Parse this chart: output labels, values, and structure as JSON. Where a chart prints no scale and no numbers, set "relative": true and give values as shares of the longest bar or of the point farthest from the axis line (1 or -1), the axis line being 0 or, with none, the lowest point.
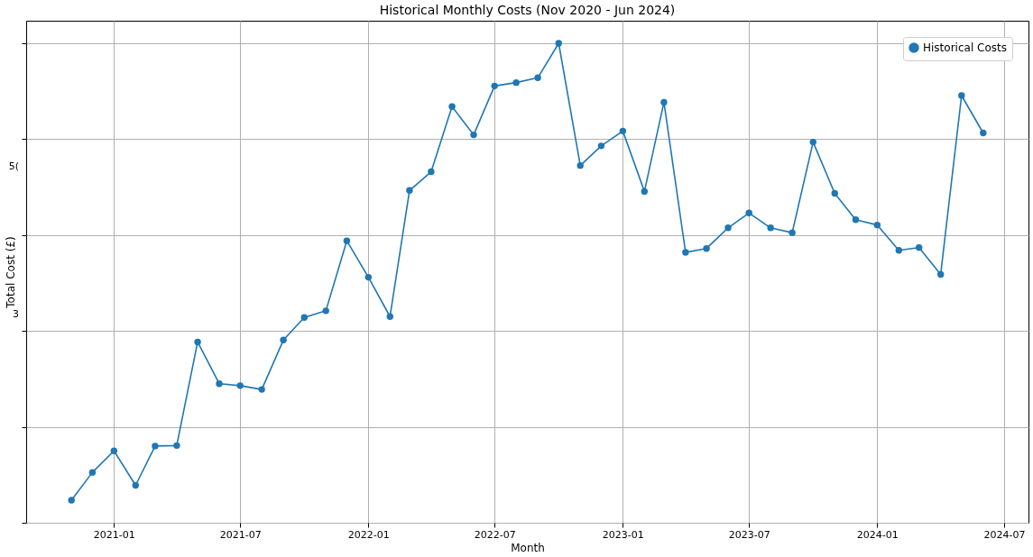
{
  "chart_data": {
    "type": "line",
    "title": "Historical Monthly Costs (Nov 2020 - Jun 2024)",
    "xlabel": "Month",
    "ylabel": "Total Cost (£)",
    "relative": true,
    "x": [
      "2020-11",
      "2020-12",
      "2021-01",
      "2021-02",
      "2021-03",
      "2021-04",
      "2021-05",
      "2021-06",
      "2021-07",
      "2021-08",
      "2021-09",
      "2021-10",
      "2021-11",
      "2021-12",
      "2022-01",
      "2022-02",
      "2022-03",
      "2022-04",
      "2022-05",
      "2022-06",
      "2022-07",
      "2022-08",
      "2022-09",
      "2022-10",
      "2022-11",
      "2022-12",
      "2023-01",
      "2023-02",
      "2023-03",
      "2023-04",
      "2023-05",
      "2023-06",
      "2023-07",
      "2023-08",
      "2023-09",
      "2023-10",
      "2023-11",
      "2023-12",
      "2024-01",
      "2024-02",
      "2024-03",
      "2024-04",
      "2024-05",
      "2024-06"
    ],
    "series": [
      {
        "name": "Historical Costs",
        "color": "#1f77b4",
        "values": [
          0.047,
          0.105,
          0.15,
          0.078,
          0.16,
          0.161,
          0.377,
          0.29,
          0.286,
          0.278,
          0.381,
          0.428,
          0.442,
          0.588,
          0.512,
          0.43,
          0.693,
          0.732,
          0.868,
          0.809,
          0.911,
          0.918,
          0.928,
          1,
          0.745,
          0.786,
          0.817,
          0.691,
          0.877,
          0.564,
          0.572,
          0.615,
          0.646,
          0.615,
          0.605,
          0.794,
          0.687,
          0.632,
          0.621,
          0.568,
          0.574,
          0.518,
          0.891,
          0.813
        ]
      }
    ],
    "xlim": [
      "2020-08-28",
      "2024-08-05"
    ],
    "xticks": [
      {
        "value": "2021-01",
        "label": "2021-01"
      },
      {
        "value": "2021-07",
        "label": "2021-07"
      },
      {
        "value": "2022-01",
        "label": "2022-01"
      },
      {
        "value": "2022-07",
        "label": "2022-07"
      },
      {
        "value": "2023-01",
        "label": "2023-01"
      },
      {
        "value": "2023-07",
        "label": "2023-07"
      },
      {
        "value": "2024-01",
        "label": "2024-01"
      },
      {
        "value": "2024-07",
        "label": "2024-07"
      }
    ],
    "annotations": [
      "5(",
      "3"
    ],
    "grid": true,
    "legend": "top right",
    "marker": "circle",
    "line_style": "solid"
  }
}
